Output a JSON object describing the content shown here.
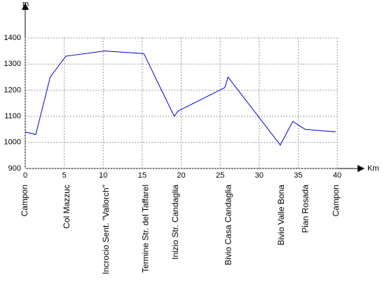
{
  "chart_data": {
    "type": "line",
    "y_label": "m",
    "x_label": "Km",
    "x": [
      0,
      1.35,
      3.2,
      5.2,
      10.2,
      15.2,
      19.1,
      19.6,
      25.6,
      26,
      32.7,
      34.3,
      35.9,
      39.8
    ],
    "series": [
      {
        "color": "#0000cc",
        "values": [
          1040,
          1030,
          1250,
          1330,
          1350,
          1340,
          1100,
          1120,
          1210,
          1250,
          990,
          1080,
          1050,
          1040
        ]
      }
    ],
    "xlim": [
      0,
      40
    ],
    "xticks": [
      0,
      5,
      10,
      15,
      20,
      25,
      30,
      35,
      40
    ],
    "ylim": [
      900,
      1400
    ],
    "yticks": [
      900,
      1000,
      1100,
      1200,
      1300,
      1400
    ],
    "grid": true,
    "waypoints": [
      {
        "label": "Campon",
        "km": 0
      },
      {
        "label": "Col Mazzuc",
        "km": 5.4
      },
      {
        "label": "Incrocio Sent. \"Vallorch\"",
        "km": 10.4
      },
      {
        "label": "Termine Str. del Taffarel",
        "km": 15.5
      },
      {
        "label": "Inizio Str. Candaglia",
        "km": 19.3
      },
      {
        "label": "Bivio Casa Candaglia",
        "km": 26.1
      },
      {
        "label": "Bivio Valle Bona",
        "km": 32.9
      },
      {
        "label": "Pian Rosada",
        "km": 36
      },
      {
        "label": "Campon",
        "km": 39.9
      }
    ]
  }
}
